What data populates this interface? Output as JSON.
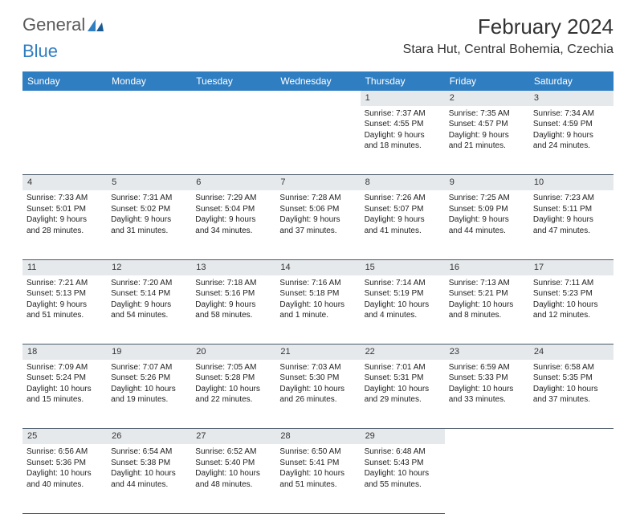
{
  "logo": {
    "text1": "General",
    "text2": "Blue"
  },
  "title": "February 2024",
  "location": "Stara Hut, Central Bohemia, Czechia",
  "colors": {
    "header_bg": "#2f7ec2",
    "header_text": "#ffffff",
    "daynum_bg": "#e6e9ec",
    "row_border": "#4a5a6a",
    "page_bg": "#ffffff",
    "logo_gray": "#5a5a5a",
    "logo_blue": "#2f7ec2"
  },
  "weekdays": [
    "Sunday",
    "Monday",
    "Tuesday",
    "Wednesday",
    "Thursday",
    "Friday",
    "Saturday"
  ],
  "weeks": [
    [
      null,
      null,
      null,
      null,
      {
        "n": "1",
        "sr": "Sunrise: 7:37 AM",
        "ss": "Sunset: 4:55 PM",
        "d1": "Daylight: 9 hours",
        "d2": "and 18 minutes."
      },
      {
        "n": "2",
        "sr": "Sunrise: 7:35 AM",
        "ss": "Sunset: 4:57 PM",
        "d1": "Daylight: 9 hours",
        "d2": "and 21 minutes."
      },
      {
        "n": "3",
        "sr": "Sunrise: 7:34 AM",
        "ss": "Sunset: 4:59 PM",
        "d1": "Daylight: 9 hours",
        "d2": "and 24 minutes."
      }
    ],
    [
      {
        "n": "4",
        "sr": "Sunrise: 7:33 AM",
        "ss": "Sunset: 5:01 PM",
        "d1": "Daylight: 9 hours",
        "d2": "and 28 minutes."
      },
      {
        "n": "5",
        "sr": "Sunrise: 7:31 AM",
        "ss": "Sunset: 5:02 PM",
        "d1": "Daylight: 9 hours",
        "d2": "and 31 minutes."
      },
      {
        "n": "6",
        "sr": "Sunrise: 7:29 AM",
        "ss": "Sunset: 5:04 PM",
        "d1": "Daylight: 9 hours",
        "d2": "and 34 minutes."
      },
      {
        "n": "7",
        "sr": "Sunrise: 7:28 AM",
        "ss": "Sunset: 5:06 PM",
        "d1": "Daylight: 9 hours",
        "d2": "and 37 minutes."
      },
      {
        "n": "8",
        "sr": "Sunrise: 7:26 AM",
        "ss": "Sunset: 5:07 PM",
        "d1": "Daylight: 9 hours",
        "d2": "and 41 minutes."
      },
      {
        "n": "9",
        "sr": "Sunrise: 7:25 AM",
        "ss": "Sunset: 5:09 PM",
        "d1": "Daylight: 9 hours",
        "d2": "and 44 minutes."
      },
      {
        "n": "10",
        "sr": "Sunrise: 7:23 AM",
        "ss": "Sunset: 5:11 PM",
        "d1": "Daylight: 9 hours",
        "d2": "and 47 minutes."
      }
    ],
    [
      {
        "n": "11",
        "sr": "Sunrise: 7:21 AM",
        "ss": "Sunset: 5:13 PM",
        "d1": "Daylight: 9 hours",
        "d2": "and 51 minutes."
      },
      {
        "n": "12",
        "sr": "Sunrise: 7:20 AM",
        "ss": "Sunset: 5:14 PM",
        "d1": "Daylight: 9 hours",
        "d2": "and 54 minutes."
      },
      {
        "n": "13",
        "sr": "Sunrise: 7:18 AM",
        "ss": "Sunset: 5:16 PM",
        "d1": "Daylight: 9 hours",
        "d2": "and 58 minutes."
      },
      {
        "n": "14",
        "sr": "Sunrise: 7:16 AM",
        "ss": "Sunset: 5:18 PM",
        "d1": "Daylight: 10 hours",
        "d2": "and 1 minute."
      },
      {
        "n": "15",
        "sr": "Sunrise: 7:14 AM",
        "ss": "Sunset: 5:19 PM",
        "d1": "Daylight: 10 hours",
        "d2": "and 4 minutes."
      },
      {
        "n": "16",
        "sr": "Sunrise: 7:13 AM",
        "ss": "Sunset: 5:21 PM",
        "d1": "Daylight: 10 hours",
        "d2": "and 8 minutes."
      },
      {
        "n": "17",
        "sr": "Sunrise: 7:11 AM",
        "ss": "Sunset: 5:23 PM",
        "d1": "Daylight: 10 hours",
        "d2": "and 12 minutes."
      }
    ],
    [
      {
        "n": "18",
        "sr": "Sunrise: 7:09 AM",
        "ss": "Sunset: 5:24 PM",
        "d1": "Daylight: 10 hours",
        "d2": "and 15 minutes."
      },
      {
        "n": "19",
        "sr": "Sunrise: 7:07 AM",
        "ss": "Sunset: 5:26 PM",
        "d1": "Daylight: 10 hours",
        "d2": "and 19 minutes."
      },
      {
        "n": "20",
        "sr": "Sunrise: 7:05 AM",
        "ss": "Sunset: 5:28 PM",
        "d1": "Daylight: 10 hours",
        "d2": "and 22 minutes."
      },
      {
        "n": "21",
        "sr": "Sunrise: 7:03 AM",
        "ss": "Sunset: 5:30 PM",
        "d1": "Daylight: 10 hours",
        "d2": "and 26 minutes."
      },
      {
        "n": "22",
        "sr": "Sunrise: 7:01 AM",
        "ss": "Sunset: 5:31 PM",
        "d1": "Daylight: 10 hours",
        "d2": "and 29 minutes."
      },
      {
        "n": "23",
        "sr": "Sunrise: 6:59 AM",
        "ss": "Sunset: 5:33 PM",
        "d1": "Daylight: 10 hours",
        "d2": "and 33 minutes."
      },
      {
        "n": "24",
        "sr": "Sunrise: 6:58 AM",
        "ss": "Sunset: 5:35 PM",
        "d1": "Daylight: 10 hours",
        "d2": "and 37 minutes."
      }
    ],
    [
      {
        "n": "25",
        "sr": "Sunrise: 6:56 AM",
        "ss": "Sunset: 5:36 PM",
        "d1": "Daylight: 10 hours",
        "d2": "and 40 minutes."
      },
      {
        "n": "26",
        "sr": "Sunrise: 6:54 AM",
        "ss": "Sunset: 5:38 PM",
        "d1": "Daylight: 10 hours",
        "d2": "and 44 minutes."
      },
      {
        "n": "27",
        "sr": "Sunrise: 6:52 AM",
        "ss": "Sunset: 5:40 PM",
        "d1": "Daylight: 10 hours",
        "d2": "and 48 minutes."
      },
      {
        "n": "28",
        "sr": "Sunrise: 6:50 AM",
        "ss": "Sunset: 5:41 PM",
        "d1": "Daylight: 10 hours",
        "d2": "and 51 minutes."
      },
      {
        "n": "29",
        "sr": "Sunrise: 6:48 AM",
        "ss": "Sunset: 5:43 PM",
        "d1": "Daylight: 10 hours",
        "d2": "and 55 minutes."
      },
      null,
      null
    ]
  ]
}
